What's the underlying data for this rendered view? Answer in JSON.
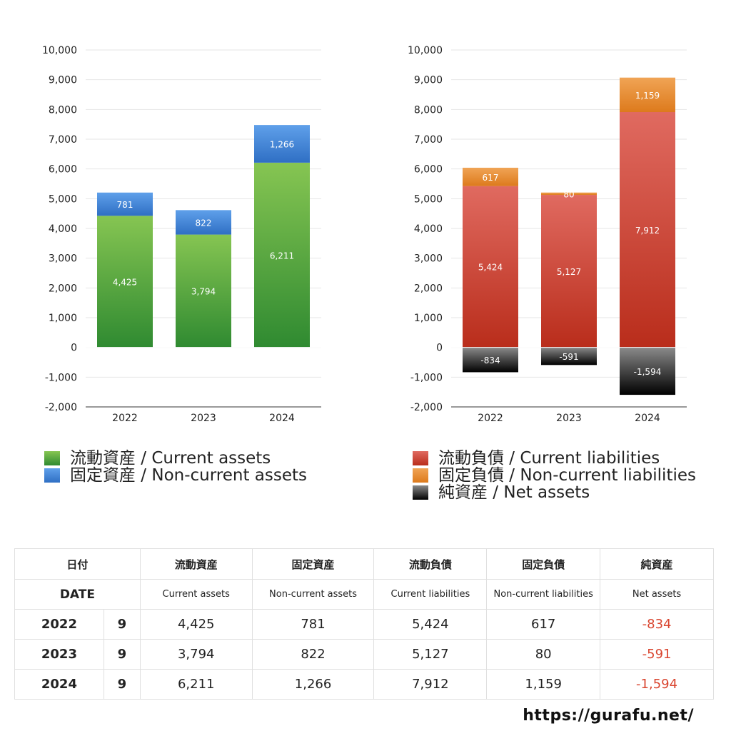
{
  "charts": [
    {
      "id": "assets",
      "y_ticks": [
        "10,000",
        "9,000",
        "8,000",
        "7,000",
        "6,000",
        "5,000",
        "4,000",
        "3,000",
        "2,000",
        "1,000",
        "0",
        "-1,000",
        "-2,000"
      ],
      "categories": [
        "2022",
        "2023",
        "2024"
      ],
      "legend": [
        {
          "label": "流動資産 / Current assets",
          "color": "#4fa03a"
        },
        {
          "label": "固定資産 / Non-current assets",
          "color": "#3f86d6"
        }
      ]
    },
    {
      "id": "liabilities",
      "y_ticks": [
        "10,000",
        "9,000",
        "8,000",
        "7,000",
        "6,000",
        "5,000",
        "4,000",
        "3,000",
        "2,000",
        "1,000",
        "0",
        "-1,000",
        "-2,000"
      ],
      "categories": [
        "2022",
        "2023",
        "2024"
      ],
      "legend": [
        {
          "label": "流動負債 / Current liabilities",
          "color": "#d2412f"
        },
        {
          "label": "固定負債 / Non-current liabilities",
          "color": "#e98a2c"
        },
        {
          "label": "純資産 / Net assets",
          "color": "#222222"
        }
      ]
    }
  ],
  "chart_data": [
    {
      "type": "bar",
      "stacked": true,
      "categories": [
        "2022",
        "2023",
        "2024"
      ],
      "series": [
        {
          "name": "流動資産 / Current assets",
          "values": [
            4425,
            3794,
            6211
          ],
          "labels": [
            "4,425",
            "3,794",
            "6,211"
          ]
        },
        {
          "name": "固定資産 / Non-current assets",
          "values": [
            781,
            822,
            1266
          ],
          "labels": [
            "781",
            "822",
            "1,266"
          ]
        }
      ],
      "ylim": [
        -2000,
        10000
      ],
      "grid": true,
      "legend_position": "bottom"
    },
    {
      "type": "bar",
      "stacked": true,
      "categories": [
        "2022",
        "2023",
        "2024"
      ],
      "series": [
        {
          "name": "流動負債 / Current liabilities",
          "values": [
            5424,
            5127,
            7912
          ],
          "labels": [
            "5,424",
            "5,127",
            "7,912"
          ]
        },
        {
          "name": "固定負債 / Non-current liabilities",
          "values": [
            617,
            80,
            1159
          ],
          "labels": [
            "617",
            "80",
            "1,159"
          ]
        },
        {
          "name": "純資産 / Net assets",
          "values": [
            -834,
            -591,
            -1594
          ],
          "labels": [
            "-834",
            "-591",
            "-1,594"
          ]
        }
      ],
      "ylim": [
        -2000,
        10000
      ],
      "grid": true,
      "legend_position": "bottom"
    }
  ],
  "table": {
    "header_jp": [
      "日付",
      "流動資産",
      "固定資産",
      "流動負債",
      "固定負債",
      "純資産"
    ],
    "header_en": [
      "DATE",
      "Current assets",
      "Non-current assets",
      "Current liabilities",
      "Non-current liabilities",
      "Net assets"
    ],
    "rows": [
      {
        "year": "2022",
        "month": "9",
        "ca": "4,425",
        "nca": "781",
        "cl": "5,424",
        "ncl": "617",
        "na": "-834"
      },
      {
        "year": "2023",
        "month": "9",
        "ca": "3,794",
        "nca": "822",
        "cl": "5,127",
        "ncl": "80",
        "na": "-591"
      },
      {
        "year": "2024",
        "month": "9",
        "ca": "6,211",
        "nca": "1,266",
        "cl": "7,912",
        "ncl": "1,159",
        "na": "-1,594"
      }
    ]
  },
  "footer": {
    "site": "https://gurafu.net/"
  },
  "colors": {
    "current_assets": [
      "#86c552",
      "#2f8a31"
    ],
    "noncurrent_assets": [
      "#5fa0ea",
      "#2f6fc4"
    ],
    "current_liabilities": [
      "#e06a60",
      "#b92d1b"
    ],
    "noncurrent_liabilities": [
      "#f0a455",
      "#dd7a1c"
    ],
    "net_assets": [
      "#8a8a8a",
      "#000000"
    ],
    "negative_text": "#d9452f"
  }
}
